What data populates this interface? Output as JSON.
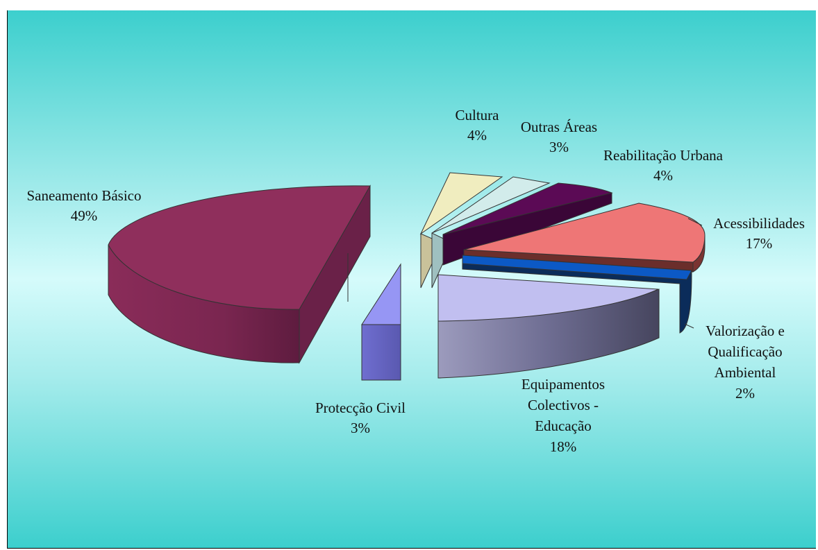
{
  "chart_data": {
    "type": "pie",
    "style": "exploded 3D pie",
    "legend": "none",
    "slices": [
      {
        "label": "Saneamento Básico",
        "value": 49,
        "display": "49%",
        "color": "#8f2f5c"
      },
      {
        "label": "Cultura",
        "value": 4,
        "display": "4%",
        "color": "#f0edbf"
      },
      {
        "label": "Outras Áreas",
        "value": 3,
        "display": "3%",
        "color": "#d2eceb"
      },
      {
        "label": "Reabilitação Urbana",
        "value": 4,
        "display": "4%",
        "color": "#5b0a55"
      },
      {
        "label": "Acessibilidades",
        "value": 17,
        "display": "17%",
        "color": "#ee7676"
      },
      {
        "label": "Valorização e Qualificação Ambiental",
        "value": 2,
        "display": "2%",
        "color": "#0c59c5"
      },
      {
        "label": "Equipamentos Colectivos - Educação",
        "value": 18,
        "display": "18%",
        "color": "#c1bff0"
      },
      {
        "label": "Protecção Civil",
        "value": 3,
        "display": "3%",
        "color": "#8f8ff1"
      }
    ]
  },
  "labels": {
    "saneamento": [
      "Saneamento Básico",
      "49%"
    ],
    "cultura": [
      "Cultura",
      "4%"
    ],
    "outras": [
      "Outras Áreas",
      "3%"
    ],
    "reabilitacao": [
      "Reabilitação Urbana",
      "4%"
    ],
    "acessibilidades": [
      "Acessibilidades",
      "17%"
    ],
    "valorizacao": [
      "Valorização e",
      "Qualificação",
      "Ambiental",
      "2%"
    ],
    "equipamentos": [
      "Equipamentos",
      "Colectivos -",
      "Educação",
      "18%"
    ],
    "proteccao": [
      "Protecção Civil",
      "3%"
    ]
  }
}
